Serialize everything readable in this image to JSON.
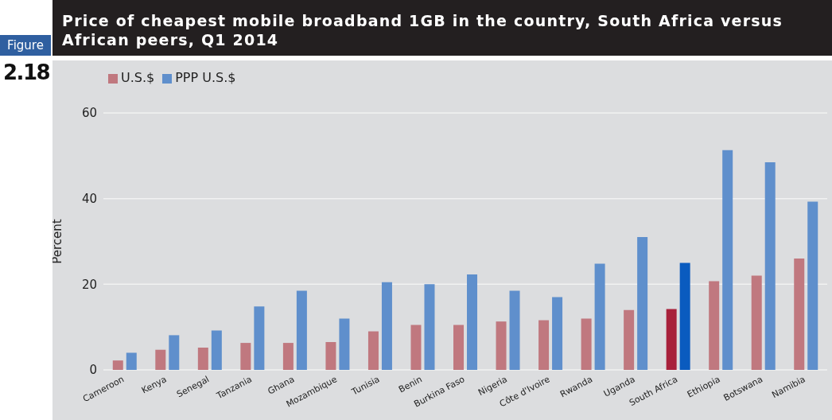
{
  "chart_data": {
    "type": "bar",
    "title": "Price of cheapest mobile broadband 1GB in the country, South Africa versus African peers, Q1 2014",
    "annotations": [
      "Figure",
      "2.18"
    ],
    "ylabel": "Percent",
    "categories": [
      "Cameroon",
      "Kenya",
      "Senegal",
      "Tanzania",
      "Ghana",
      "Mozambique",
      "Tunisia",
      "Benin",
      "Burkina Faso",
      "Nigeria",
      "Côte d'Ivoire",
      "Rwanda",
      "Uganda",
      "South Africa",
      "Ethiopia",
      "Botswana",
      "Namibia"
    ],
    "series": [
      {
        "name": "U.S.$",
        "color": "#c0787f",
        "colors": [
          "#c0787f",
          "#c0787f",
          "#c0787f",
          "#c0787f",
          "#c0787f",
          "#c0787f",
          "#c0787f",
          "#c0787f",
          "#c0787f",
          "#c0787f",
          "#c0787f",
          "#c0787f",
          "#c0787f",
          "#a8213b",
          "#c0787f",
          "#c0787f",
          "#c0787f"
        ],
        "values": [
          2.2,
          4.7,
          5.2,
          6.3,
          6.3,
          6.5,
          9,
          10.5,
          10.5,
          11.3,
          11.6,
          12,
          14,
          14.2,
          20.7,
          22,
          26
        ]
      },
      {
        "name": "PPP U.S.$",
        "color": "#5f8fcc",
        "colors": [
          "#5f8fcc",
          "#5f8fcc",
          "#5f8fcc",
          "#5f8fcc",
          "#5f8fcc",
          "#5f8fcc",
          "#5f8fcc",
          "#5f8fcc",
          "#5f8fcc",
          "#5f8fcc",
          "#5f8fcc",
          "#5f8fcc",
          "#5f8fcc",
          "#0a5bbf",
          "#5f8fcc",
          "#5f8fcc",
          "#5f8fcc"
        ],
        "values": [
          4,
          8.1,
          9.2,
          14.8,
          18.5,
          12,
          20.5,
          20,
          22.3,
          18.5,
          17,
          24.8,
          31,
          25,
          51.3,
          48.5,
          39.3
        ]
      }
    ],
    "ylim": [
      0,
      60
    ],
    "yticks": [
      0,
      20,
      40,
      60
    ],
    "grid": "y",
    "legend": "top left"
  }
}
